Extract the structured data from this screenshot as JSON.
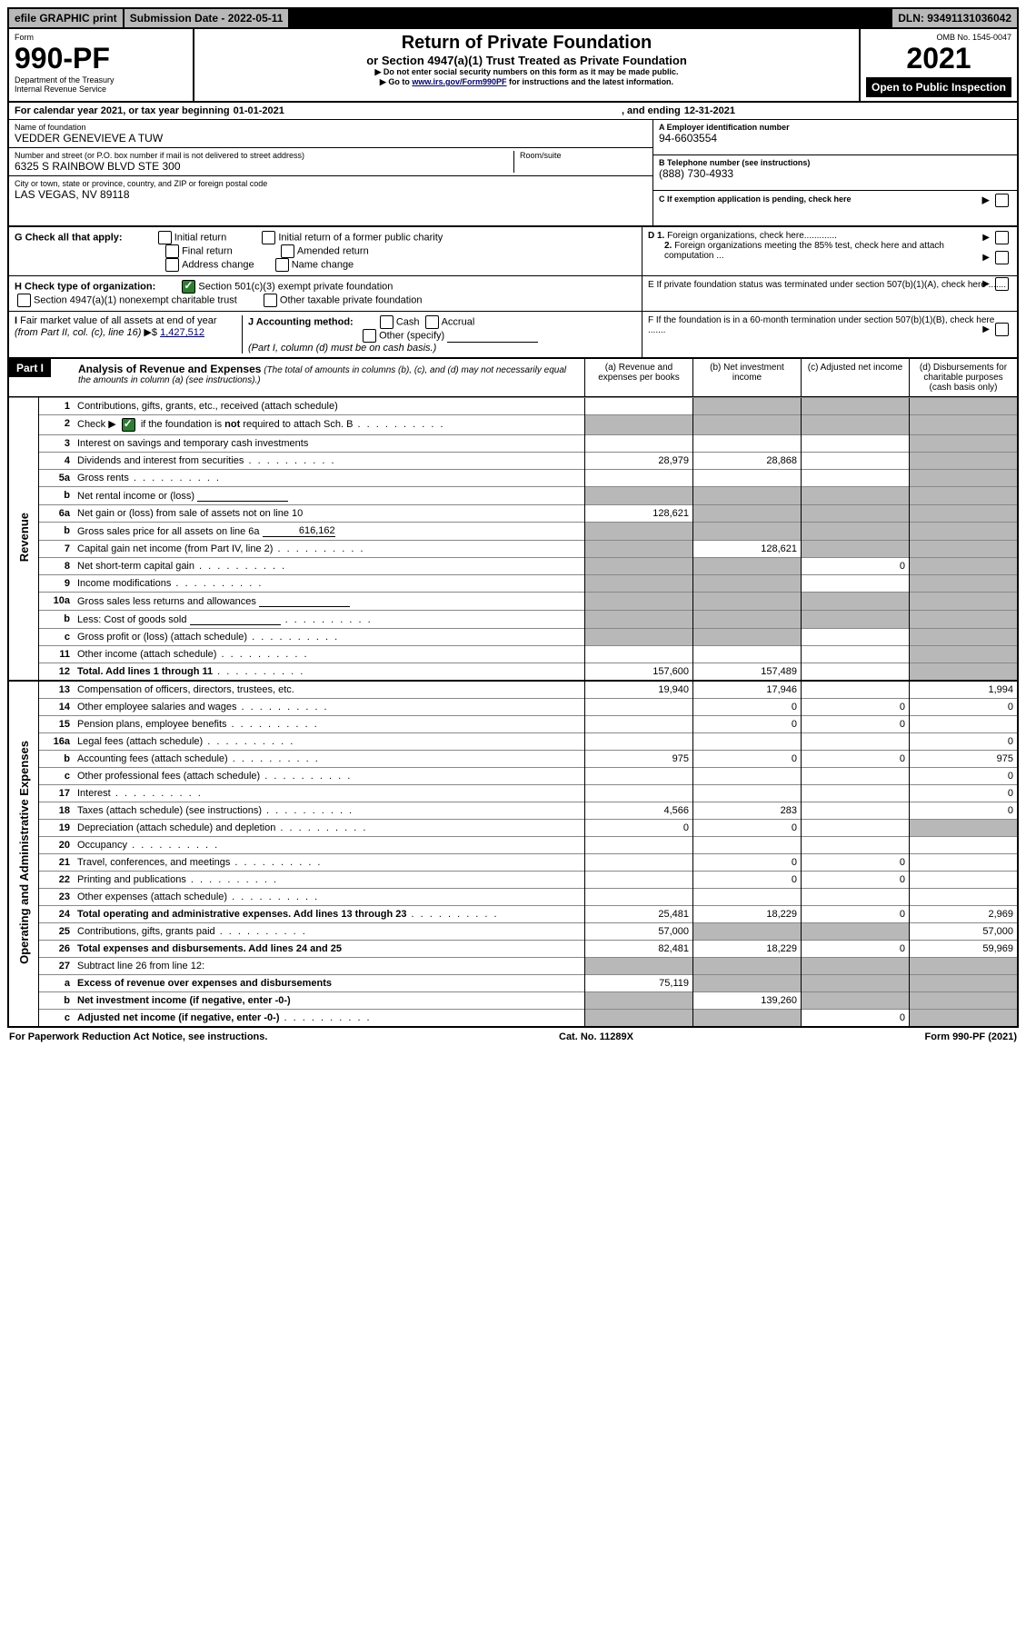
{
  "topbar": {
    "efile": "efile GRAPHIC print",
    "subdate_label": "Submission Date - ",
    "subdate": "2022-05-11",
    "dln_label": "DLN: ",
    "dln": "93491131036042"
  },
  "header": {
    "form_label": "Form",
    "form_no": "990-PF",
    "dept": "Department of the Treasury",
    "irs": "Internal Revenue Service",
    "title1": "Return of Private Foundation",
    "title2": "or Section 4947(a)(1) Trust Treated as Private Foundation",
    "note1": "Do not enter social security numbers on this form as it may be made public.",
    "note2_pre": "Go to ",
    "note2_link": "www.irs.gov/Form990PF",
    "note2_post": " for instructions and the latest information.",
    "omb": "OMB No. 1545-0047",
    "year": "2021",
    "open": "Open to Public Inspection"
  },
  "cal": {
    "text1": "For calendar year 2021, or tax year beginning ",
    "begin": "01-01-2021",
    "text2": ", and ending ",
    "end": "12-31-2021"
  },
  "info": {
    "name_lbl": "Name of foundation",
    "name": "VEDDER GENEVIEVE A TUW",
    "addr_lbl": "Number and street (or P.O. box number if mail is not delivered to street address)",
    "addr": "6325 S RAINBOW BLVD STE 300",
    "room_lbl": "Room/suite",
    "city_lbl": "City or town, state or province, country, and ZIP or foreign postal code",
    "city": "LAS VEGAS, NV  89118",
    "a_lbl": "A Employer identification number",
    "a_val": "94-6603554",
    "b_lbl": "B Telephone number (see instructions)",
    "b_val": "(888) 730-4933",
    "c_lbl": "C If exemption application is pending, check here"
  },
  "g": {
    "lbl": "G Check all that apply:",
    "opts": [
      "Initial return",
      "Final return",
      "Address change",
      "Initial return of a former public charity",
      "Amended return",
      "Name change"
    ]
  },
  "h": {
    "lbl": "H Check type of organization:",
    "opt1": "Section 501(c)(3) exempt private foundation",
    "opt2": "Section 4947(a)(1) nonexempt charitable trust",
    "opt3": "Other taxable private foundation"
  },
  "d": {
    "d1": "D 1. Foreign organizations, check here.............",
    "d2": "2. Foreign organizations meeting the 85% test, check here and attach computation ...",
    "e": "E  If private foundation status was terminated under section 507(b)(1)(A), check here .......",
    "f": "F  If the foundation is in a 60-month termination under section 507(b)(1)(B), check here ......."
  },
  "i": {
    "lbl": "I Fair market value of all assets at end of year (from Part II, col. (c), line 16)",
    "val": "1,427,512",
    "j_lbl": "J Accounting method:",
    "j_cash": "Cash",
    "j_accrual": "Accrual",
    "j_other": "Other (specify)",
    "j_note": "(Part I, column (d) must be on cash basis.)"
  },
  "part1": {
    "tag": "Part I",
    "title": "Analysis of Revenue and Expenses",
    "sub": " (The total of amounts in columns (b), (c), and (d) may not necessarily equal the amounts in column (a) (see instructions).)",
    "cols": {
      "a": "(a)  Revenue and expenses per books",
      "b": "(b)  Net investment income",
      "c": "(c)  Adjusted net income",
      "d": "(d)  Disbursements for charitable purposes (cash basis only)"
    }
  },
  "sections": {
    "rev": "Revenue",
    "ops": "Operating and Administrative Expenses"
  },
  "rows": [
    {
      "sec": "rev",
      "ln": "1",
      "desc": "Contributions, gifts, grants, etc., received (attach schedule)",
      "a": "",
      "b": "s",
      "c": "s",
      "d": "s"
    },
    {
      "sec": "rev",
      "ln": "2",
      "desc": "Check ▶ ☑ if the foundation is not required to attach Sch. B",
      "dots": true,
      "a": "s",
      "b": "s",
      "c": "s",
      "d": "s",
      "checked": true,
      "bold_not": true
    },
    {
      "sec": "rev",
      "ln": "3",
      "desc": "Interest on savings and temporary cash investments",
      "a": "",
      "b": "",
      "c": "",
      "d": "s"
    },
    {
      "sec": "rev",
      "ln": "4",
      "desc": "Dividends and interest from securities",
      "dots": true,
      "a": "28,979",
      "b": "28,868",
      "c": "",
      "d": "s"
    },
    {
      "sec": "rev",
      "ln": "5a",
      "desc": "Gross rents",
      "dots": true,
      "a": "",
      "b": "",
      "c": "",
      "d": "s"
    },
    {
      "sec": "rev",
      "ln": "b",
      "desc": "Net rental income or (loss)",
      "inline": true,
      "a": "s",
      "b": "s",
      "c": "s",
      "d": "s"
    },
    {
      "sec": "rev",
      "ln": "6a",
      "desc": "Net gain or (loss) from sale of assets not on line 10",
      "a": "128,621",
      "b": "s",
      "c": "s",
      "d": "s"
    },
    {
      "sec": "rev",
      "ln": "b",
      "desc": "Gross sales price for all assets on line 6a",
      "inline_val": "616,162",
      "a": "s",
      "b": "s",
      "c": "s",
      "d": "s"
    },
    {
      "sec": "rev",
      "ln": "7",
      "desc": "Capital gain net income (from Part IV, line 2)",
      "dots": true,
      "a": "s",
      "b": "128,621",
      "c": "s",
      "d": "s"
    },
    {
      "sec": "rev",
      "ln": "8",
      "desc": "Net short-term capital gain",
      "dots": true,
      "a": "s",
      "b": "s",
      "c": "0",
      "d": "s"
    },
    {
      "sec": "rev",
      "ln": "9",
      "desc": "Income modifications",
      "dots": true,
      "a": "s",
      "b": "s",
      "c": "",
      "d": "s"
    },
    {
      "sec": "rev",
      "ln": "10a",
      "desc": "Gross sales less returns and allowances",
      "inline": true,
      "a": "s",
      "b": "s",
      "c": "s",
      "d": "s"
    },
    {
      "sec": "rev",
      "ln": "b",
      "desc": "Less: Cost of goods sold",
      "dots": true,
      "inline": true,
      "a": "s",
      "b": "s",
      "c": "s",
      "d": "s"
    },
    {
      "sec": "rev",
      "ln": "c",
      "desc": "Gross profit or (loss) (attach schedule)",
      "dots": true,
      "a": "s",
      "b": "s",
      "c": "",
      "d": "s"
    },
    {
      "sec": "rev",
      "ln": "11",
      "desc": "Other income (attach schedule)",
      "dots": true,
      "a": "",
      "b": "",
      "c": "",
      "d": "s"
    },
    {
      "sec": "rev",
      "ln": "12",
      "desc": "Total. Add lines 1 through 11",
      "bold": true,
      "dots": true,
      "a": "157,600",
      "b": "157,489",
      "c": "",
      "d": "s"
    },
    {
      "sec": "ops",
      "ln": "13",
      "desc": "Compensation of officers, directors, trustees, etc.",
      "a": "19,940",
      "b": "17,946",
      "c": "",
      "d": "1,994"
    },
    {
      "sec": "ops",
      "ln": "14",
      "desc": "Other employee salaries and wages",
      "dots": true,
      "a": "",
      "b": "0",
      "c": "0",
      "d": "0"
    },
    {
      "sec": "ops",
      "ln": "15",
      "desc": "Pension plans, employee benefits",
      "dots": true,
      "a": "",
      "b": "0",
      "c": "0",
      "d": ""
    },
    {
      "sec": "ops",
      "ln": "16a",
      "desc": "Legal fees (attach schedule)",
      "dots": true,
      "a": "",
      "b": "",
      "c": "",
      "d": "0"
    },
    {
      "sec": "ops",
      "ln": "b",
      "desc": "Accounting fees (attach schedule)",
      "dots": true,
      "a": "975",
      "b": "0",
      "c": "0",
      "d": "975"
    },
    {
      "sec": "ops",
      "ln": "c",
      "desc": "Other professional fees (attach schedule)",
      "dots": true,
      "a": "",
      "b": "",
      "c": "",
      "d": "0"
    },
    {
      "sec": "ops",
      "ln": "17",
      "desc": "Interest",
      "dots": true,
      "a": "",
      "b": "",
      "c": "",
      "d": "0"
    },
    {
      "sec": "ops",
      "ln": "18",
      "desc": "Taxes (attach schedule) (see instructions)",
      "dots": true,
      "a": "4,566",
      "b": "283",
      "c": "",
      "d": "0"
    },
    {
      "sec": "ops",
      "ln": "19",
      "desc": "Depreciation (attach schedule) and depletion",
      "dots": true,
      "a": "0",
      "b": "0",
      "c": "",
      "d": "s"
    },
    {
      "sec": "ops",
      "ln": "20",
      "desc": "Occupancy",
      "dots": true,
      "a": "",
      "b": "",
      "c": "",
      "d": ""
    },
    {
      "sec": "ops",
      "ln": "21",
      "desc": "Travel, conferences, and meetings",
      "dots": true,
      "a": "",
      "b": "0",
      "c": "0",
      "d": ""
    },
    {
      "sec": "ops",
      "ln": "22",
      "desc": "Printing and publications",
      "dots": true,
      "a": "",
      "b": "0",
      "c": "0",
      "d": ""
    },
    {
      "sec": "ops",
      "ln": "23",
      "desc": "Other expenses (attach schedule)",
      "dots": true,
      "a": "",
      "b": "",
      "c": "",
      "d": ""
    },
    {
      "sec": "ops",
      "ln": "24",
      "desc": "Total operating and administrative expenses. Add lines 13 through 23",
      "bold": true,
      "dots": true,
      "a": "25,481",
      "b": "18,229",
      "c": "0",
      "d": "2,969"
    },
    {
      "sec": "ops",
      "ln": "25",
      "desc": "Contributions, gifts, grants paid",
      "dots": true,
      "a": "57,000",
      "b": "s",
      "c": "s",
      "d": "57,000"
    },
    {
      "sec": "ops",
      "ln": "26",
      "desc": "Total expenses and disbursements. Add lines 24 and 25",
      "bold": true,
      "a": "82,481",
      "b": "18,229",
      "c": "0",
      "d": "59,969"
    },
    {
      "sec": "ops",
      "ln": "27",
      "desc": "Subtract line 26 from line 12:",
      "a": "s",
      "b": "s",
      "c": "s",
      "d": "s"
    },
    {
      "sec": "ops",
      "ln": "a",
      "desc": "Excess of revenue over expenses and disbursements",
      "bold": true,
      "a": "75,119",
      "b": "s",
      "c": "s",
      "d": "s"
    },
    {
      "sec": "ops",
      "ln": "b",
      "desc": "Net investment income (if negative, enter -0-)",
      "bold": true,
      "a": "s",
      "b": "139,260",
      "c": "s",
      "d": "s"
    },
    {
      "sec": "ops",
      "ln": "c",
      "desc": "Adjusted net income (if negative, enter -0-)",
      "bold": true,
      "dots": true,
      "a": "s",
      "b": "s",
      "c": "0",
      "d": "s"
    }
  ],
  "footer": {
    "left": "For Paperwork Reduction Act Notice, see instructions.",
    "mid": "Cat. No. 11289X",
    "right": "Form 990-PF (2021)"
  }
}
